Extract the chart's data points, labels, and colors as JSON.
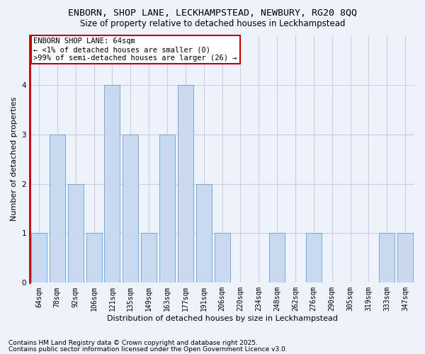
{
  "title1": "ENBORN, SHOP LANE, LECKHAMPSTEAD, NEWBURY, RG20 8QQ",
  "title2": "Size of property relative to detached houses in Leckhampstead",
  "xlabel": "Distribution of detached houses by size in Leckhampstead",
  "ylabel": "Number of detached properties",
  "categories": [
    "64sqm",
    "78sqm",
    "92sqm",
    "106sqm",
    "121sqm",
    "135sqm",
    "149sqm",
    "163sqm",
    "177sqm",
    "191sqm",
    "206sqm",
    "220sqm",
    "234sqm",
    "248sqm",
    "262sqm",
    "276sqm",
    "290sqm",
    "305sqm",
    "319sqm",
    "333sqm",
    "347sqm"
  ],
  "values": [
    1,
    3,
    2,
    1,
    4,
    3,
    1,
    3,
    4,
    2,
    1,
    0,
    0,
    1,
    0,
    1,
    0,
    0,
    0,
    1,
    1
  ],
  "highlight_index": 0,
  "bar_color": "#c9d9f0",
  "bar_edge_color": "#6a9fd8",
  "highlight_bar_edge_color": "#c00000",
  "ylim": [
    0,
    5
  ],
  "yticks": [
    0,
    1,
    2,
    3,
    4
  ],
  "annotation_text": "ENBORN SHOP LANE: 64sqm\n← <1% of detached houses are smaller (0)\n>99% of semi-detached houses are larger (26) →",
  "annotation_box_color": "#ffffff",
  "annotation_box_edge": "#c00000",
  "footnote1": "Contains HM Land Registry data © Crown copyright and database right 2025.",
  "footnote2": "Contains public sector information licensed under the Open Government Licence v3.0.",
  "bg_color": "#eef2fb",
  "grid_color": "#c8d0e8",
  "left_spine_color": "#c00000",
  "title1_fontsize": 9.5,
  "title2_fontsize": 8.5,
  "axis_label_fontsize": 8,
  "tick_fontsize": 7,
  "annotation_fontsize": 7.5,
  "footnote_fontsize": 6.5
}
